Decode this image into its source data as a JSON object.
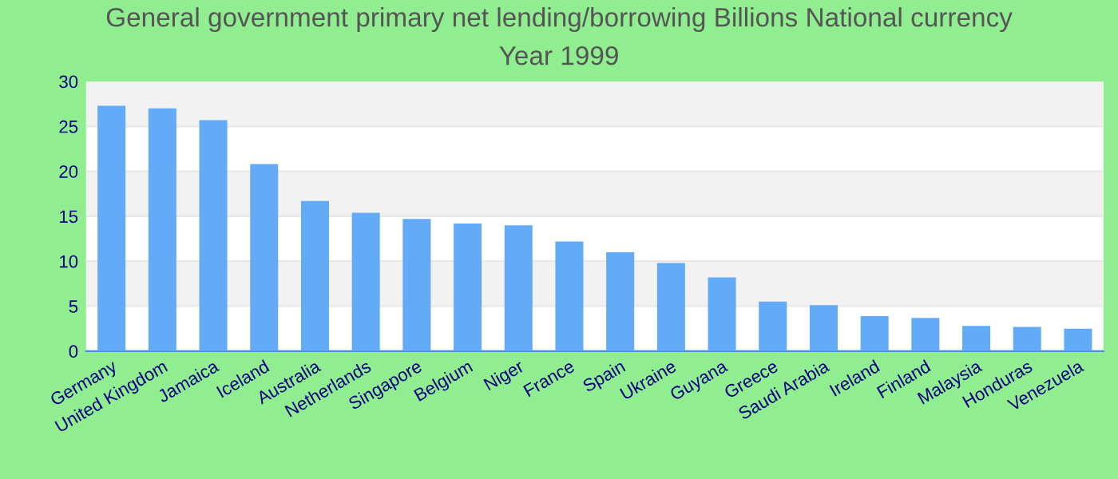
{
  "chart_data": {
    "type": "bar",
    "title": "General government primary net lending/borrowing Billions National currency",
    "subtitle": "Year 1999",
    "categories": [
      "Germany",
      "United Kingdom",
      "Jamaica",
      "Iceland",
      "Australia",
      "Netherlands",
      "Singapore",
      "Belgium",
      "Niger",
      "France",
      "Spain",
      "Ukraine",
      "Guyana",
      "Greece",
      "Saudi Arabia",
      "Ireland",
      "Finland",
      "Malaysia",
      "Honduras",
      "Venezuela"
    ],
    "values": [
      27.3,
      27.0,
      25.7,
      20.8,
      16.7,
      15.4,
      14.7,
      14.2,
      14.0,
      12.2,
      11.0,
      9.8,
      8.2,
      5.5,
      5.1,
      3.9,
      3.7,
      2.8,
      2.7,
      2.5
    ],
    "color": "#63abf7",
    "ylim": [
      0,
      30
    ],
    "yticks": [
      0,
      5,
      10,
      15,
      20,
      25,
      30
    ],
    "grid": "y",
    "legend": false
  }
}
